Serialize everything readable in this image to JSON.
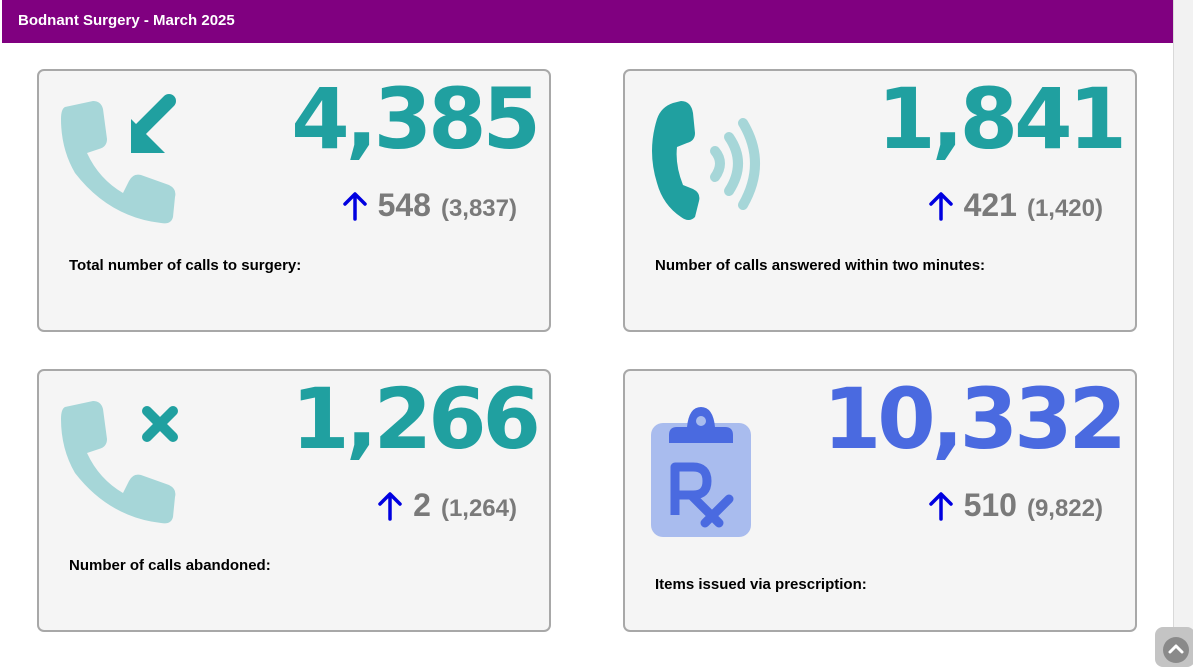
{
  "header": {
    "title": "Bodnant Surgery - March 2025",
    "color": "#800080"
  },
  "colors": {
    "teal": "#20a0a0",
    "teal_light": "#a6d6d8",
    "blue": "#4a6ae0",
    "blue_light": "#a9bcee",
    "arrow": "#0000e0",
    "gray_text": "#7a7a7a"
  },
  "cards": [
    {
      "icon": "phone-incoming-icon",
      "value": "4,385",
      "trend": "up-arrow-icon",
      "delta": "548",
      "previous": "(3,837)",
      "label": "Total number of calls to surgery:"
    },
    {
      "icon": "phone-ringing-icon",
      "value": "1,841",
      "trend": "up-arrow-icon",
      "delta": "421",
      "previous": "(1,420)",
      "label": "Number of calls answered within two minutes:"
    },
    {
      "icon": "phone-missed-icon",
      "value": "1,266",
      "trend": "up-arrow-icon",
      "delta": "2",
      "previous": "(1,264)",
      "label": "Number of calls abandoned:"
    },
    {
      "icon": "prescription-clipboard-icon",
      "value": "10,332",
      "trend": "up-arrow-icon",
      "delta": "510",
      "previous": "(9,822)",
      "label": "Items issued via prescription:"
    }
  ],
  "scroll": {
    "icon": "chevron-up-icon"
  }
}
